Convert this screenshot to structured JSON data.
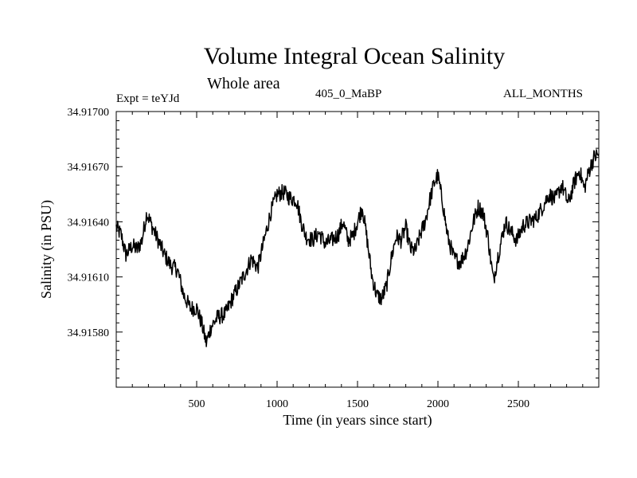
{
  "chart_data": {
    "type": "line",
    "title": "Volume Integral Ocean Salinity",
    "subtitle": "Whole area",
    "experiment": "Expt = teYJd",
    "run_label": "405_0_MaBP",
    "period_label": "ALL_MONTHS",
    "xlabel": "Time (in years since start)",
    "ylabel": "Salinity (in PSU)",
    "xlim": [
      0,
      3000
    ],
    "ylim": [
      34.9155,
      34.917
    ],
    "x_ticks": [
      500,
      1000,
      1500,
      2000,
      2500
    ],
    "y_ticks": [
      34.9158,
      34.9161,
      34.9164,
      34.9167,
      34.917
    ],
    "y_tick_labels": [
      "34.91580",
      "34.91610",
      "34.91640",
      "34.91670",
      "34.91700"
    ],
    "grid": false,
    "series": [
      {
        "name": "Salinity",
        "points": [
          [
            0,
            34.91637
          ],
          [
            30,
            34.91633
          ],
          [
            60,
            34.91622
          ],
          [
            100,
            34.91627
          ],
          [
            130,
            34.91625
          ],
          [
            160,
            34.9163
          ],
          [
            190,
            34.91645
          ],
          [
            220,
            34.91638
          ],
          [
            260,
            34.9163
          ],
          [
            300,
            34.91622
          ],
          [
            340,
            34.91616
          ],
          [
            380,
            34.91614
          ],
          [
            420,
            34.916
          ],
          [
            460,
            34.91593
          ],
          [
            500,
            34.91593
          ],
          [
            530,
            34.91585
          ],
          [
            560,
            34.91574
          ],
          [
            590,
            34.91583
          ],
          [
            630,
            34.91588
          ],
          [
            680,
            34.9159
          ],
          [
            720,
            34.91598
          ],
          [
            760,
            34.91605
          ],
          [
            800,
            34.91612
          ],
          [
            840,
            34.9162
          ],
          [
            880,
            34.91615
          ],
          [
            920,
            34.9163
          ],
          [
            960,
            34.91645
          ],
          [
            1000,
            34.91655
          ],
          [
            1040,
            34.91656
          ],
          [
            1080,
            34.91653
          ],
          [
            1120,
            34.91652
          ],
          [
            1150,
            34.9164
          ],
          [
            1180,
            34.91632
          ],
          [
            1220,
            34.9163
          ],
          [
            1260,
            34.91634
          ],
          [
            1300,
            34.91628
          ],
          [
            1340,
            34.9163
          ],
          [
            1380,
            34.91633
          ],
          [
            1410,
            34.9164
          ],
          [
            1440,
            34.9163
          ],
          [
            1470,
            34.91632
          ],
          [
            1500,
            34.9164
          ],
          [
            1530,
            34.91648
          ],
          [
            1560,
            34.9163
          ],
          [
            1590,
            34.9161
          ],
          [
            1620,
            34.916
          ],
          [
            1650,
            34.91598
          ],
          [
            1680,
            34.91605
          ],
          [
            1710,
            34.9162
          ],
          [
            1740,
            34.91632
          ],
          [
            1770,
            34.9163
          ],
          [
            1800,
            34.91637
          ],
          [
            1830,
            34.91625
          ],
          [
            1860,
            34.91624
          ],
          [
            1890,
            34.91633
          ],
          [
            1920,
            34.9164
          ],
          [
            1950,
            34.91652
          ],
          [
            1980,
            34.91662
          ],
          [
            2000,
            34.91665
          ],
          [
            2030,
            34.9165
          ],
          [
            2060,
            34.91632
          ],
          [
            2100,
            34.9162
          ],
          [
            2140,
            34.91618
          ],
          [
            2180,
            34.91625
          ],
          [
            2220,
            34.9164
          ],
          [
            2250,
            34.91648
          ],
          [
            2280,
            34.91645
          ],
          [
            2310,
            34.91632
          ],
          [
            2330,
            34.91618
          ],
          [
            2345,
            34.91608
          ],
          [
            2370,
            34.9162
          ],
          [
            2400,
            34.91632
          ],
          [
            2420,
            34.9164
          ],
          [
            2450,
            34.91635
          ],
          [
            2490,
            34.9163
          ],
          [
            2530,
            34.91638
          ],
          [
            2570,
            34.9164
          ],
          [
            2610,
            34.91642
          ],
          [
            2650,
            34.91648
          ],
          [
            2690,
            34.91655
          ],
          [
            2730,
            34.91652
          ],
          [
            2770,
            34.9166
          ],
          [
            2810,
            34.9165
          ],
          [
            2850,
            34.91662
          ],
          [
            2880,
            34.91668
          ],
          [
            2910,
            34.91658
          ],
          [
            2940,
            34.91668
          ],
          [
            2970,
            34.91675
          ],
          [
            3000,
            34.91677
          ]
        ]
      }
    ]
  }
}
